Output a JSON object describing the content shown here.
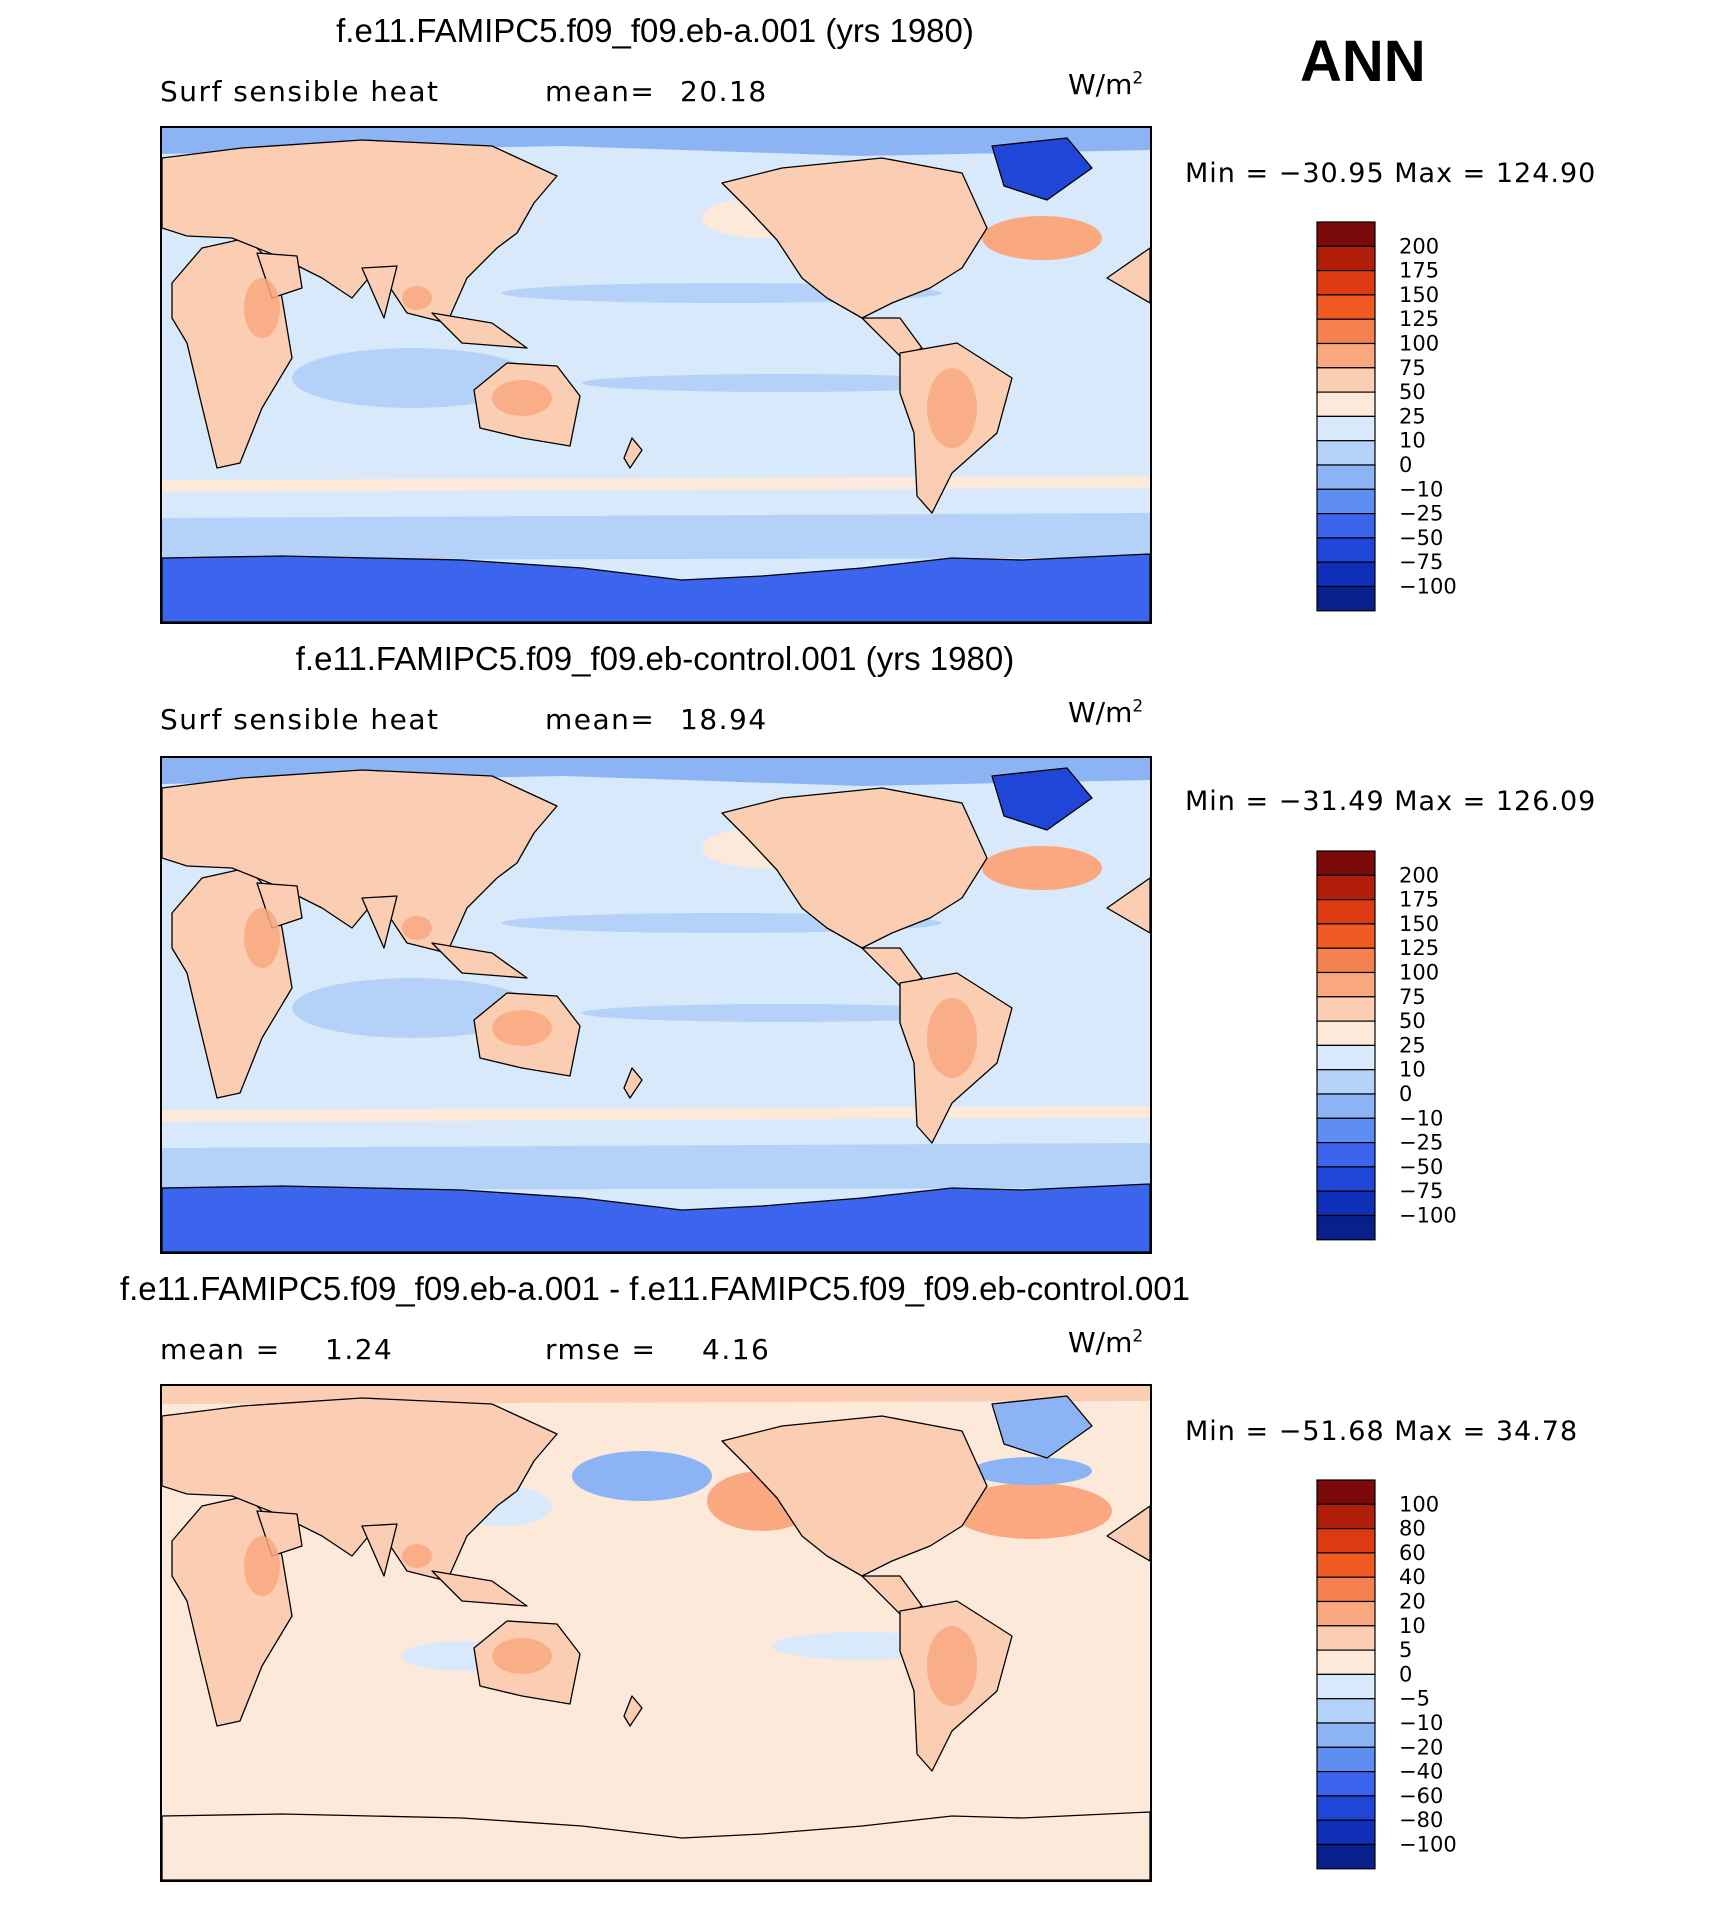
{
  "season": "ANN",
  "units_base": "W/m",
  "units_exp": "2",
  "panels": [
    {
      "title": "f.e11.FAMIPC5.f09_f09.eb-a.001 (yrs 1980)",
      "left_label": "Surf sensible heat",
      "mid_label": "mean=",
      "mid_value": "20.18",
      "min_label": "Min =",
      "min_value": "−30.95",
      "max_label": "Max =",
      "max_value": "124.90",
      "map_kind": "absolute",
      "colorbar": {
        "levels": [
          "200",
          "175",
          "150",
          "125",
          "100",
          "75",
          "50",
          "25",
          "10",
          "0",
          "−10",
          "−25",
          "−50",
          "−75",
          "−100"
        ],
        "colors": [
          "#7a0a0a",
          "#b01e0a",
          "#dd3a12",
          "#f25a24",
          "#f58050",
          "#f9a880",
          "#fbcdb3",
          "#fde9da",
          "#d7e9fb",
          "#b4d2f7",
          "#8cb4f4",
          "#5e8ef2",
          "#3a65ec",
          "#2046d8",
          "#0f2fb8",
          "#07208a"
        ]
      }
    },
    {
      "title": "f.e11.FAMIPC5.f09_f09.eb-control.001 (yrs 1980)",
      "left_label": "Surf sensible heat",
      "mid_label": "mean=",
      "mid_value": "18.94",
      "min_label": "Min =",
      "min_value": "−31.49",
      "max_label": "Max =",
      "max_value": "126.09",
      "map_kind": "absolute",
      "colorbar": {
        "levels": [
          "200",
          "175",
          "150",
          "125",
          "100",
          "75",
          "50",
          "25",
          "10",
          "0",
          "−10",
          "−25",
          "−50",
          "−75",
          "−100"
        ],
        "colors": [
          "#7a0a0a",
          "#b01e0a",
          "#dd3a12",
          "#f25a24",
          "#f58050",
          "#f9a880",
          "#fbcdb3",
          "#fde9da",
          "#d7e9fb",
          "#b4d2f7",
          "#8cb4f4",
          "#5e8ef2",
          "#3a65ec",
          "#2046d8",
          "#0f2fb8",
          "#07208a"
        ]
      }
    },
    {
      "title": "f.e11.FAMIPC5.f09_f09.eb-a.001 - f.e11.FAMIPC5.f09_f09.eb-control.001",
      "left_label": "mean =",
      "left_value": "1.24",
      "mid_label": "rmse =",
      "mid_value": "4.16",
      "min_label": "Min =",
      "min_value": "−51.68",
      "max_label": "Max =",
      "max_value": "34.78",
      "map_kind": "difference",
      "colorbar": {
        "levels": [
          "100",
          "80",
          "60",
          "40",
          "20",
          "10",
          "5",
          "0",
          "−5",
          "−10",
          "−20",
          "−40",
          "−60",
          "−80",
          "−100"
        ],
        "colors": [
          "#7a0a0a",
          "#b01e0a",
          "#dd3a12",
          "#f25a24",
          "#f58050",
          "#f9a880",
          "#fbcdb3",
          "#fde9da",
          "#d7e9fb",
          "#b4d2f7",
          "#8cb4f4",
          "#5e8ef2",
          "#3a65ec",
          "#2046d8",
          "#0f2fb8",
          "#07208a"
        ]
      }
    }
  ]
}
